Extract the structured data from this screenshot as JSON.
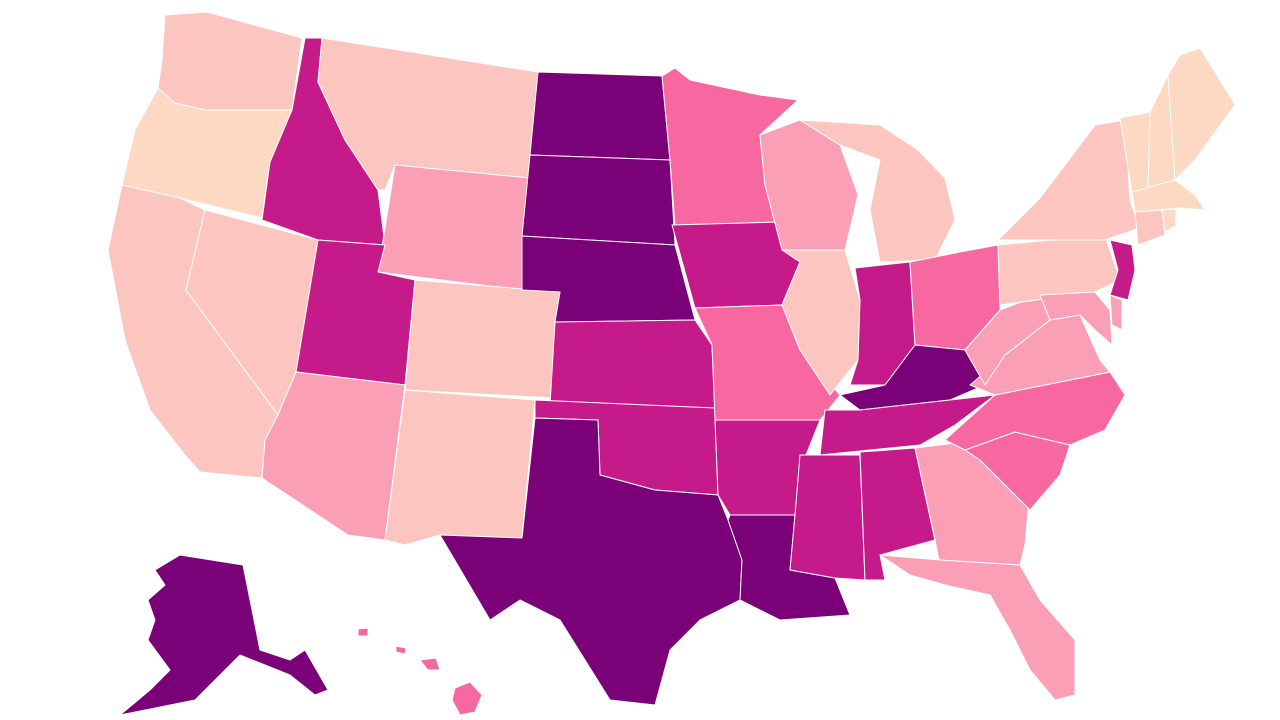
{
  "map": {
    "type": "choropleth",
    "region": "United States",
    "palette": {
      "c1": "#fdd9c3",
      "c2": "#fcc5c0",
      "c3": "#fa9fb5",
      "c4": "#f768a1",
      "c5": "#c51b8a",
      "c6": "#7a0177"
    },
    "states": [
      {
        "code": "WA",
        "level": "c2"
      },
      {
        "code": "OR",
        "level": "c1"
      },
      {
        "code": "CA",
        "level": "c2"
      },
      {
        "code": "NV",
        "level": "c2"
      },
      {
        "code": "ID",
        "level": "c5"
      },
      {
        "code": "MT",
        "level": "c2"
      },
      {
        "code": "WY",
        "level": "c3"
      },
      {
        "code": "UT",
        "level": "c5"
      },
      {
        "code": "AZ",
        "level": "c3"
      },
      {
        "code": "CO",
        "level": "c2"
      },
      {
        "code": "NM",
        "level": "c2"
      },
      {
        "code": "ND",
        "level": "c6"
      },
      {
        "code": "SD",
        "level": "c6"
      },
      {
        "code": "NE",
        "level": "c6"
      },
      {
        "code": "KS",
        "level": "c5"
      },
      {
        "code": "OK",
        "level": "c5"
      },
      {
        "code": "TX",
        "level": "c6"
      },
      {
        "code": "MN",
        "level": "c4"
      },
      {
        "code": "IA",
        "level": "c5"
      },
      {
        "code": "MO",
        "level": "c4"
      },
      {
        "code": "AR",
        "level": "c5"
      },
      {
        "code": "LA",
        "level": "c6"
      },
      {
        "code": "WI",
        "level": "c3"
      },
      {
        "code": "IL",
        "level": "c2"
      },
      {
        "code": "MI",
        "level": "c2"
      },
      {
        "code": "IN",
        "level": "c5"
      },
      {
        "code": "OH",
        "level": "c4"
      },
      {
        "code": "KY",
        "level": "c6"
      },
      {
        "code": "TN",
        "level": "c5"
      },
      {
        "code": "MS",
        "level": "c5"
      },
      {
        "code": "AL",
        "level": "c5"
      },
      {
        "code": "GA",
        "level": "c3"
      },
      {
        "code": "FL",
        "level": "c3"
      },
      {
        "code": "SC",
        "level": "c4"
      },
      {
        "code": "NC",
        "level": "c4"
      },
      {
        "code": "VA",
        "level": "c3"
      },
      {
        "code": "WV",
        "level": "c3"
      },
      {
        "code": "PA",
        "level": "c2"
      },
      {
        "code": "NY",
        "level": "c2"
      },
      {
        "code": "NJ",
        "level": "c5"
      },
      {
        "code": "MD",
        "level": "c3"
      },
      {
        "code": "DE",
        "level": "c3"
      },
      {
        "code": "VT",
        "level": "c1"
      },
      {
        "code": "NH",
        "level": "c1"
      },
      {
        "code": "ME",
        "level": "c1"
      },
      {
        "code": "MA",
        "level": "c1"
      },
      {
        "code": "CT",
        "level": "c2"
      },
      {
        "code": "RI",
        "level": "c1"
      },
      {
        "code": "AK",
        "level": "c6"
      },
      {
        "code": "HI",
        "level": "c4"
      }
    ]
  }
}
